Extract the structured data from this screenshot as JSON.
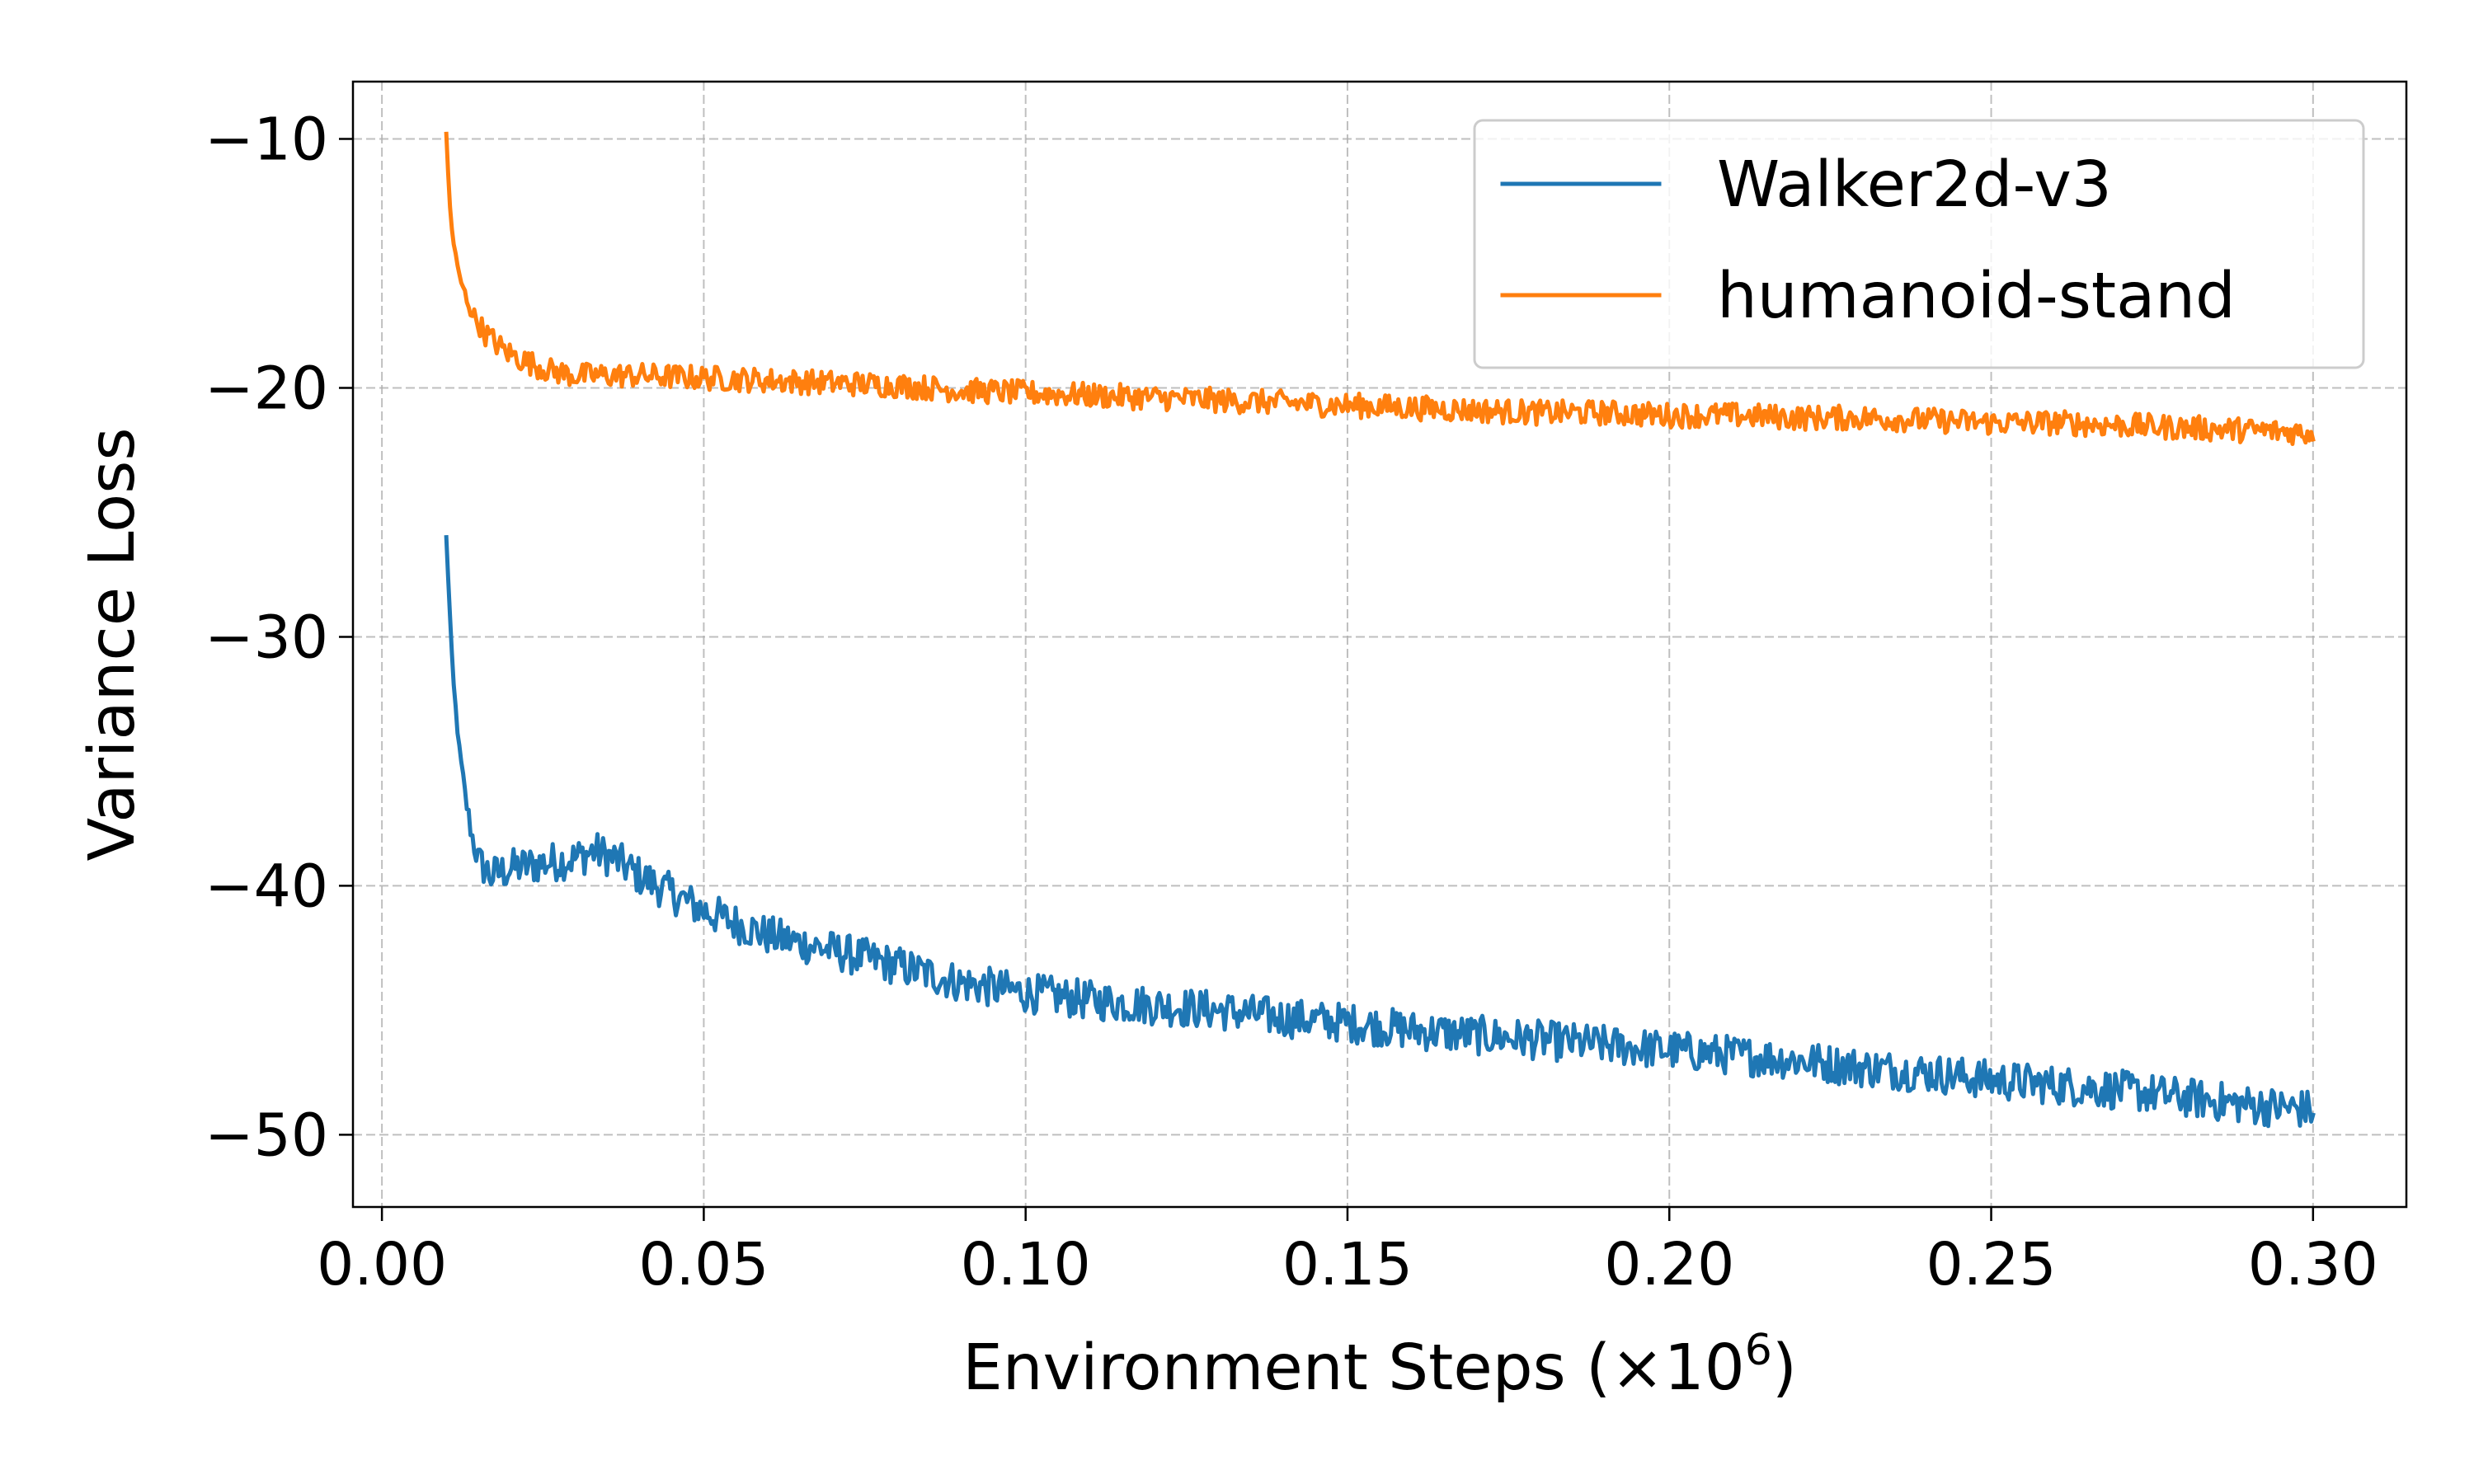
{
  "chart_data": {
    "type": "line",
    "title": "",
    "xlabel_main": "Environment Steps (",
    "xlabel_mult": "×10",
    "xlabel_exp": "6",
    "xlabel_close": ")",
    "ylabel": "Variance Loss",
    "xlim": [
      -0.0045,
      0.3145
    ],
    "ylim": [
      -52.9,
      -7.7
    ],
    "xticks": [
      0.0,
      0.05,
      0.1,
      0.15,
      0.2,
      0.25,
      0.3
    ],
    "xtick_labels": [
      "0.00",
      "0.05",
      "0.10",
      "0.15",
      "0.20",
      "0.25",
      "0.30"
    ],
    "yticks": [
      -10,
      -20,
      -30,
      -40,
      -50
    ],
    "ytick_labels": [
      "−10",
      "−20",
      "−30",
      "−40",
      "−50"
    ],
    "grid": true,
    "legend_position": "top-right",
    "series": [
      {
        "name": "Walker2d-v3",
        "color": "#1f77b4",
        "x": [
          0.01,
          0.011,
          0.012,
          0.013,
          0.014,
          0.015,
          0.017,
          0.02,
          0.025,
          0.03,
          0.033,
          0.036,
          0.04,
          0.045,
          0.05,
          0.06,
          0.07,
          0.08,
          0.09,
          0.1,
          0.11,
          0.12,
          0.13,
          0.14,
          0.15,
          0.16,
          0.17,
          0.18,
          0.19,
          0.2,
          0.21,
          0.22,
          0.23,
          0.24,
          0.25,
          0.26,
          0.27,
          0.28,
          0.29,
          0.3
        ],
        "y": [
          -26.0,
          -31.5,
          -34.5,
          -36.5,
          -38.0,
          -39.0,
          -39.6,
          -39.3,
          -39.1,
          -38.9,
          -38.6,
          -38.9,
          -39.6,
          -40.3,
          -41.0,
          -42.0,
          -42.6,
          -43.2,
          -43.9,
          -44.3,
          -44.6,
          -44.8,
          -45.0,
          -45.3,
          -45.5,
          -45.8,
          -46.0,
          -46.2,
          -46.4,
          -46.6,
          -46.8,
          -47.0,
          -47.3,
          -47.5,
          -47.8,
          -48.0,
          -48.2,
          -48.5,
          -48.8,
          -49.0
        ],
        "noise": 0.8
      },
      {
        "name": "humanoid-stand",
        "color": "#ff7f0e",
        "x": [
          0.01,
          0.0105,
          0.011,
          0.012,
          0.013,
          0.014,
          0.016,
          0.019,
          0.022,
          0.026,
          0.03,
          0.04,
          0.05,
          0.06,
          0.07,
          0.08,
          0.09,
          0.1,
          0.11,
          0.12,
          0.13,
          0.14,
          0.15,
          0.16,
          0.17,
          0.18,
          0.19,
          0.2,
          0.21,
          0.22,
          0.23,
          0.24,
          0.25,
          0.26,
          0.27,
          0.28,
          0.29,
          0.3
        ],
        "y": [
          -9.8,
          -12.5,
          -14.0,
          -15.5,
          -16.3,
          -17.0,
          -17.8,
          -18.5,
          -18.9,
          -19.3,
          -19.5,
          -19.5,
          -19.6,
          -19.7,
          -19.8,
          -19.9,
          -20.1,
          -20.2,
          -20.3,
          -20.4,
          -20.5,
          -20.6,
          -20.7,
          -20.8,
          -20.9,
          -21.0,
          -21.0,
          -21.1,
          -21.1,
          -21.2,
          -21.2,
          -21.3,
          -21.4,
          -21.4,
          -21.5,
          -21.6,
          -21.7,
          -21.8
        ],
        "noise": 0.5
      }
    ]
  }
}
